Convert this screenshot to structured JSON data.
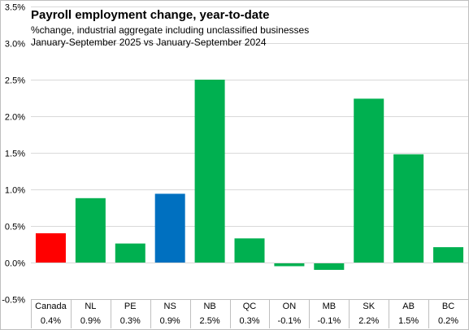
{
  "chart_data": {
    "type": "bar",
    "title": "Payroll employment change, year-to-date",
    "subtitle": "%change, industrial aggregate including unclassified businesses",
    "subtitle2": "January-September 2025 vs January-September 2024",
    "categories": [
      "Canada",
      "NL",
      "PE",
      "NS",
      "NB",
      "QC",
      "ON",
      "MB",
      "SK",
      "AB",
      "BC"
    ],
    "values": [
      0.4,
      0.88,
      0.26,
      0.94,
      2.5,
      0.33,
      -0.05,
      -0.1,
      2.24,
      1.48,
      0.21
    ],
    "value_labels": [
      "0.4%",
      "0.9%",
      "0.3%",
      "0.9%",
      "2.5%",
      "0.3%",
      "-0.1%",
      "-0.1%",
      "2.2%",
      "1.5%",
      "0.2%"
    ],
    "bar_colors": [
      "#ff0000",
      "#00b050",
      "#00b050",
      "#0070c0",
      "#00b050",
      "#00b050",
      "#00b050",
      "#00b050",
      "#00b050",
      "#00b050",
      "#00b050"
    ],
    "ylim": [
      -0.5,
      3.5
    ],
    "yticks": [
      -0.5,
      0.0,
      0.5,
      1.0,
      1.5,
      2.0,
      2.5,
      3.0,
      3.5
    ],
    "ytick_labels": [
      "-0.5%",
      "0.0%",
      "0.5%",
      "1.0%",
      "1.5%",
      "2.0%",
      "2.5%",
      "3.0%",
      "3.5%"
    ],
    "xlabel": "",
    "ylabel": "",
    "grid": "horizontal",
    "legend": "none",
    "gridline_color": "#d9d9d9",
    "axis_color": "#bfbfbf"
  }
}
